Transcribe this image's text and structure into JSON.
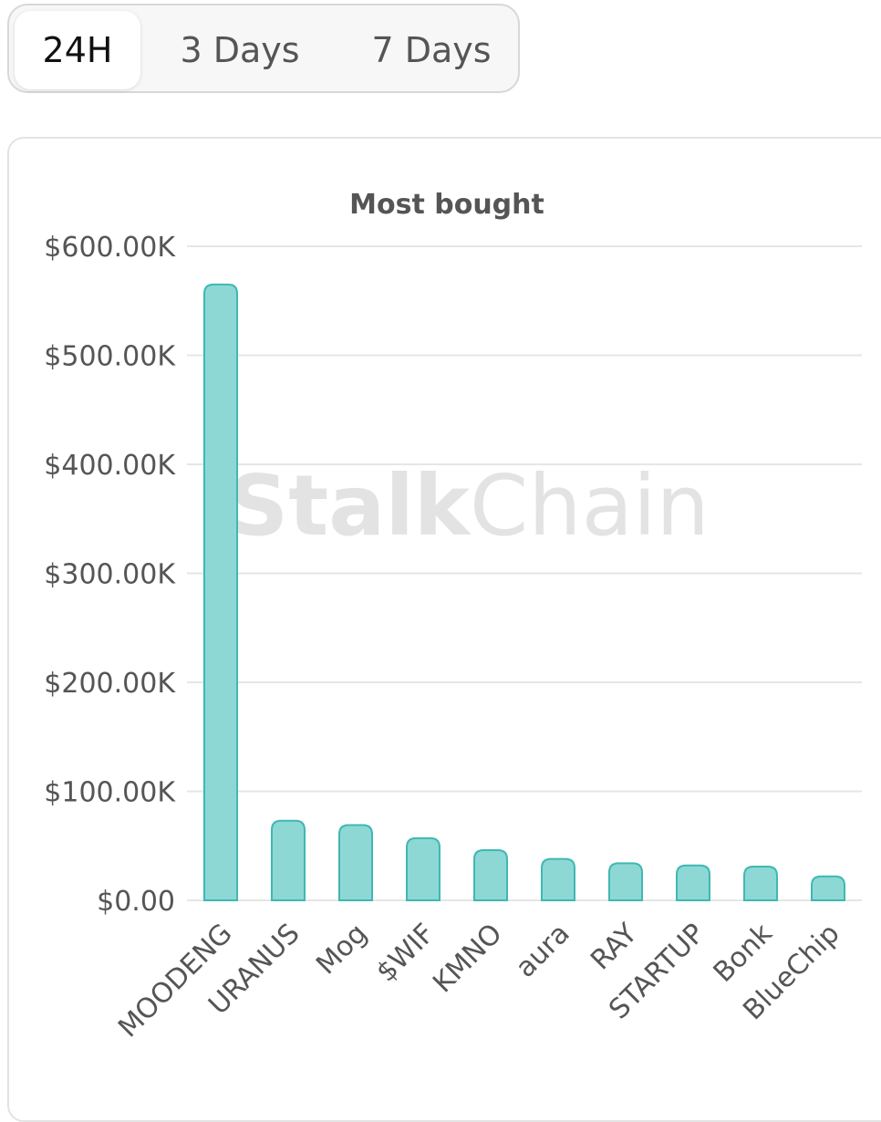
{
  "tabs": [
    {
      "label": "24H",
      "active": true
    },
    {
      "label": "3 Days",
      "active": false
    },
    {
      "label": "7 Days",
      "active": false
    }
  ],
  "watermark": {
    "bold": "Stalk",
    "light": "Chain"
  },
  "colors": {
    "bar_fill": "#8dd8d5",
    "bar_stroke": "#3fb8b2",
    "grid": "#e6e6e6"
  },
  "chart_data": {
    "type": "bar",
    "title": "Most bought",
    "categories": [
      "MOODENG",
      "URANUS",
      "Mog",
      "$WIF",
      "KMNO",
      "aura",
      "RAY",
      "STARTUP",
      "Bonk",
      "BlueChip"
    ],
    "values": [
      565000,
      73000,
      69000,
      57000,
      46000,
      38000,
      34000,
      32000,
      31000,
      22000
    ],
    "ylim": [
      0,
      600000
    ],
    "yticks": [
      {
        "value": 0,
        "label": "$0.00"
      },
      {
        "value": 100000,
        "label": "$100.00K"
      },
      {
        "value": 200000,
        "label": "$200.00K"
      },
      {
        "value": 300000,
        "label": "$300.00K"
      },
      {
        "value": 400000,
        "label": "$400.00K"
      },
      {
        "value": 500000,
        "label": "$500.00K"
      },
      {
        "value": 600000,
        "label": "$600.00K"
      }
    ],
    "grid": true,
    "legend": false
  }
}
